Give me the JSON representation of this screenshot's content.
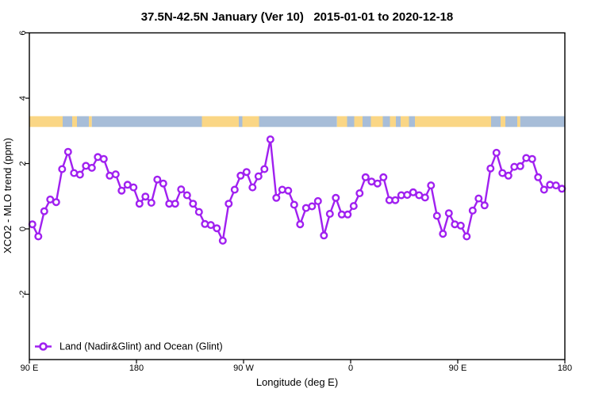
{
  "chart": {
    "title": "37.5N-42.5N January (Ver 10)   2015-01-01 to 2020-12-18",
    "xlabel": "Longitude (deg E)",
    "ylabel": "XCO2 - MLO trend (ppm)",
    "legend_label": "Land (Nadir&Glint) and Ocean (Glint)"
  },
  "chart_data": {
    "type": "line",
    "title": "37.5N-42.5N January (Ver 10)   2015-01-01 to 2020-12-18",
    "xlabel": "Longitude (deg E)",
    "ylabel": "XCO2 - MLO trend (ppm)",
    "ylim": [
      -4,
      6
    ],
    "y_ticks": [
      6,
      4,
      2,
      0,
      -2
    ],
    "x_axis_span_deg": [
      0,
      450
    ],
    "x_ticks": [
      {
        "offset_deg": 0,
        "label": "90 E"
      },
      {
        "offset_deg": 90,
        "label": "180"
      },
      {
        "offset_deg": 180,
        "label": "90 W"
      },
      {
        "offset_deg": 270,
        "label": "0"
      },
      {
        "offset_deg": 360,
        "label": "90 E"
      },
      {
        "offset_deg": 450,
        "label": "180"
      }
    ],
    "grid": false,
    "legend_position": "bottom-left",
    "series": [
      {
        "name": "Land (Nadir&Glint) and Ocean (Glint)",
        "color": "#A020F0",
        "marker": "open-circle",
        "x_start_offset_deg": 2.5,
        "x_step_deg": 5,
        "values": [
          0.14,
          -0.23,
          0.54,
          0.9,
          0.82,
          1.83,
          2.36,
          1.71,
          1.66,
          1.93,
          1.87,
          2.2,
          2.14,
          1.63,
          1.67,
          1.17,
          1.35,
          1.27,
          0.77,
          0.99,
          0.8,
          1.51,
          1.39,
          0.77,
          0.77,
          1.21,
          1.03,
          0.77,
          0.52,
          0.15,
          0.12,
          0.02,
          -0.36,
          0.77,
          1.2,
          1.63,
          1.74,
          1.27,
          1.61,
          1.83,
          2.74,
          0.95,
          1.2,
          1.17,
          0.74,
          0.14,
          0.64,
          0.69,
          0.85,
          -0.2,
          0.46,
          0.95,
          0.44,
          0.44,
          0.7,
          1.09,
          1.58,
          1.45,
          1.39,
          1.58,
          0.88,
          0.88,
          1.03,
          1.04,
          1.12,
          1.03,
          0.96,
          1.33,
          0.4,
          -0.15,
          0.48,
          0.14,
          0.1,
          -0.23,
          0.56,
          0.93,
          0.72,
          1.85,
          2.33,
          1.71,
          1.63,
          1.9,
          1.92,
          2.17,
          2.14,
          1.58,
          1.2,
          1.35,
          1.33,
          1.23
        ]
      }
    ],
    "surface_band": {
      "description": "land/ocean surface-type strip drawn across the plot",
      "y_range": [
        3.12,
        3.45
      ],
      "land_color": "#FAD685",
      "ocean_color": "#A7BDD8",
      "segments": [
        {
          "from": 0,
          "to": 28,
          "type": "land"
        },
        {
          "from": 28,
          "to": 36,
          "type": "ocean"
        },
        {
          "from": 36,
          "to": 40,
          "type": "land"
        },
        {
          "from": 40,
          "to": 50,
          "type": "ocean"
        },
        {
          "from": 50,
          "to": 52.5,
          "type": "land"
        },
        {
          "from": 52.5,
          "to": 145,
          "type": "ocean"
        },
        {
          "from": 145,
          "to": 176,
          "type": "land"
        },
        {
          "from": 176,
          "to": 179,
          "type": "ocean"
        },
        {
          "from": 179,
          "to": 193,
          "type": "land"
        },
        {
          "from": 193,
          "to": 258.5,
          "type": "ocean"
        },
        {
          "from": 258.5,
          "to": 267,
          "type": "land"
        },
        {
          "from": 267,
          "to": 273,
          "type": "ocean"
        },
        {
          "from": 273,
          "to": 280,
          "type": "land"
        },
        {
          "from": 280,
          "to": 287,
          "type": "ocean"
        },
        {
          "from": 287,
          "to": 297,
          "type": "land"
        },
        {
          "from": 297,
          "to": 303,
          "type": "ocean"
        },
        {
          "from": 303,
          "to": 308,
          "type": "land"
        },
        {
          "from": 308,
          "to": 312,
          "type": "ocean"
        },
        {
          "from": 312,
          "to": 319,
          "type": "land"
        },
        {
          "from": 319,
          "to": 324,
          "type": "ocean"
        },
        {
          "from": 324,
          "to": 388,
          "type": "land"
        },
        {
          "from": 388,
          "to": 396,
          "type": "ocean"
        },
        {
          "from": 396,
          "to": 400,
          "type": "land"
        },
        {
          "from": 400,
          "to": 410,
          "type": "ocean"
        },
        {
          "from": 410,
          "to": 412.5,
          "type": "land"
        },
        {
          "from": 412.5,
          "to": 450,
          "type": "ocean"
        }
      ]
    }
  },
  "colors": {
    "series_purple": "#A020F0",
    "band_land_orange": "#FAD685",
    "band_ocean_blue": "#A7BDD8",
    "axis_black": "#000000",
    "background": "#FFFFFF"
  }
}
